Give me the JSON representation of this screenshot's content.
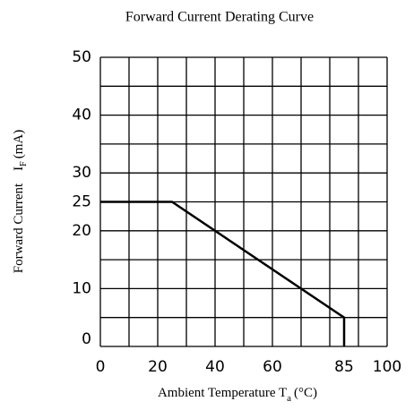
{
  "chart_data": {
    "type": "line",
    "title": "Forward Current Derating Curve",
    "ylabel": "Forward Current",
    "ylabel_symbol": "I",
    "ylabel_subscript": "F",
    "ylabel_unit": "(mA)",
    "xlabel": "Ambient Temperature T",
    "xlabel_subscript": "a",
    "xlabel_unit": "(°C)",
    "x": [
      0,
      25,
      85,
      85
    ],
    "values": [
      25,
      25,
      5,
      0
    ],
    "color": "#000000",
    "xlim": [
      0,
      100
    ],
    "ylim": [
      0,
      50
    ],
    "xticks": [
      0,
      20,
      40,
      60,
      85,
      100
    ],
    "yticks": [
      0,
      10,
      20,
      25,
      30,
      40,
      50
    ],
    "xgrid": [
      0,
      10,
      20,
      30,
      40,
      50,
      60,
      70,
      80,
      90,
      100
    ],
    "ygrid": [
      0,
      5,
      10,
      15,
      20,
      25,
      30,
      35,
      40,
      45,
      50
    ],
    "grid": true
  }
}
